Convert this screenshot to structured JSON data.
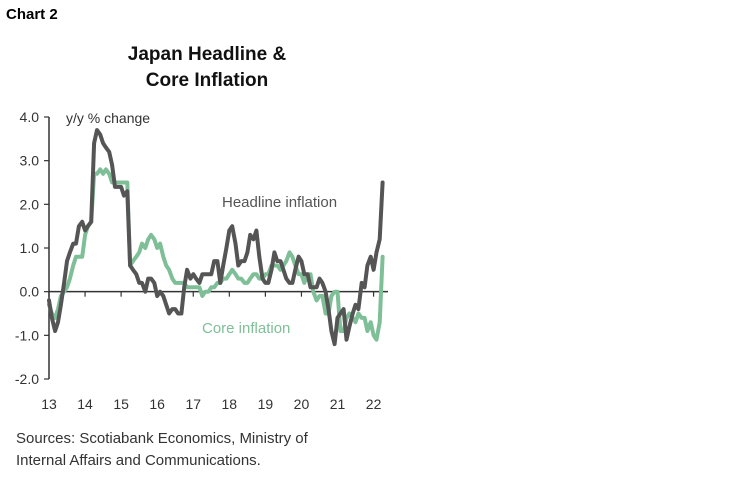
{
  "chart_label": "Chart 2",
  "title_line1": "Japan Headline &",
  "title_line2": "Core Inflation",
  "source_line1": "Sources: Scotiabank Economics, Ministry of",
  "source_line2": "Internal Affairs and Communications.",
  "colors": {
    "headline": "#555555",
    "core": "#7fbf97",
    "axis": "#333333"
  },
  "chart_data": {
    "type": "line",
    "ylabel": "y/y % change",
    "ylim": [
      -2.0,
      4.0
    ],
    "yticks": [
      "4.0",
      "3.0",
      "2.0",
      "1.0",
      "0.0",
      "-1.0",
      "-2.0"
    ],
    "xlim": [
      2013.0,
      2022.4
    ],
    "xticks": [
      "13",
      "14",
      "15",
      "16",
      "17",
      "18",
      "19",
      "20",
      "21",
      "22"
    ],
    "annotations": {
      "headline": "Headline inflation",
      "core": "Core inflation"
    },
    "series": [
      {
        "name": "Headline inflation",
        "x": [
          2013.0,
          2013.08,
          2013.17,
          2013.25,
          2013.33,
          2013.42,
          2013.5,
          2013.58,
          2013.67,
          2013.75,
          2013.83,
          2013.92,
          2014.0,
          2014.08,
          2014.17,
          2014.25,
          2014.33,
          2014.42,
          2014.5,
          2014.58,
          2014.67,
          2014.75,
          2014.83,
          2014.92,
          2015.0,
          2015.08,
          2015.17,
          2015.25,
          2015.33,
          2015.42,
          2015.5,
          2015.58,
          2015.67,
          2015.75,
          2015.83,
          2015.92,
          2016.0,
          2016.08,
          2016.17,
          2016.25,
          2016.33,
          2016.42,
          2016.5,
          2016.58,
          2016.67,
          2016.75,
          2016.83,
          2016.92,
          2017.0,
          2017.08,
          2017.17,
          2017.25,
          2017.33,
          2017.42,
          2017.5,
          2017.58,
          2017.67,
          2017.75,
          2017.83,
          2017.92,
          2018.0,
          2018.08,
          2018.17,
          2018.25,
          2018.33,
          2018.42,
          2018.5,
          2018.58,
          2018.67,
          2018.75,
          2018.83,
          2018.92,
          2019.0,
          2019.08,
          2019.17,
          2019.25,
          2019.33,
          2019.42,
          2019.5,
          2019.58,
          2019.67,
          2019.75,
          2019.83,
          2019.92,
          2020.0,
          2020.08,
          2020.17,
          2020.25,
          2020.33,
          2020.42,
          2020.5,
          2020.58,
          2020.67,
          2020.75,
          2020.83,
          2020.92,
          2021.0,
          2021.08,
          2021.17,
          2021.25,
          2021.33,
          2021.42,
          2021.5,
          2021.58,
          2021.67,
          2021.75,
          2021.83,
          2021.92,
          2022.0,
          2022.08,
          2022.17,
          2022.25
        ],
        "y": [
          -0.2,
          -0.6,
          -0.9,
          -0.7,
          -0.3,
          0.2,
          0.7,
          0.9,
          1.1,
          1.1,
          1.5,
          1.6,
          1.4,
          1.5,
          1.6,
          3.4,
          3.7,
          3.6,
          3.4,
          3.3,
          3.2,
          2.9,
          2.4,
          2.4,
          2.4,
          2.2,
          2.3,
          0.6,
          0.5,
          0.4,
          0.2,
          0.2,
          0.0,
          0.3,
          0.3,
          0.2,
          -0.1,
          0.0,
          -0.1,
          -0.3,
          -0.5,
          -0.4,
          -0.4,
          -0.5,
          -0.5,
          0.1,
          0.5,
          0.3,
          0.4,
          0.3,
          0.2,
          0.4,
          0.4,
          0.4,
          0.4,
          0.7,
          0.7,
          0.2,
          0.6,
          1.0,
          1.4,
          1.5,
          1.1,
          0.6,
          0.7,
          0.7,
          0.9,
          1.3,
          1.2,
          1.4,
          0.8,
          0.3,
          0.2,
          0.2,
          0.5,
          0.9,
          0.7,
          0.7,
          0.5,
          0.3,
          0.2,
          0.2,
          0.5,
          0.8,
          0.7,
          0.4,
          0.4,
          0.1,
          0.1,
          0.1,
          0.3,
          0.2,
          0.0,
          -0.4,
          -0.9,
          -1.2,
          -0.6,
          -0.5,
          -0.4,
          -1.1,
          -0.8,
          -0.5,
          -0.3,
          -0.4,
          0.2,
          0.1,
          0.6,
          0.8,
          0.5,
          0.9,
          1.2,
          2.5
        ]
      },
      {
        "name": "Core inflation",
        "x": [
          2013.0,
          2013.08,
          2013.17,
          2013.25,
          2013.33,
          2013.42,
          2013.5,
          2013.58,
          2013.67,
          2013.75,
          2013.83,
          2013.92,
          2014.0,
          2014.08,
          2014.17,
          2014.25,
          2014.33,
          2014.42,
          2014.5,
          2014.58,
          2014.67,
          2014.75,
          2014.83,
          2014.92,
          2015.0,
          2015.08,
          2015.17,
          2015.25,
          2015.33,
          2015.42,
          2015.5,
          2015.58,
          2015.67,
          2015.75,
          2015.83,
          2015.92,
          2016.0,
          2016.08,
          2016.17,
          2016.25,
          2016.33,
          2016.42,
          2016.5,
          2016.58,
          2016.67,
          2016.75,
          2016.83,
          2016.92,
          2017.0,
          2017.08,
          2017.17,
          2017.25,
          2017.33,
          2017.42,
          2017.5,
          2017.58,
          2017.67,
          2017.75,
          2017.83,
          2017.92,
          2018.0,
          2018.08,
          2018.17,
          2018.25,
          2018.33,
          2018.42,
          2018.5,
          2018.58,
          2018.67,
          2018.75,
          2018.83,
          2018.92,
          2019.0,
          2019.08,
          2019.17,
          2019.25,
          2019.33,
          2019.42,
          2019.5,
          2019.58,
          2019.67,
          2019.75,
          2019.83,
          2019.92,
          2020.0,
          2020.08,
          2020.17,
          2020.25,
          2020.33,
          2020.42,
          2020.5,
          2020.58,
          2020.67,
          2020.75,
          2020.83,
          2020.92,
          2021.0,
          2021.08,
          2021.17,
          2021.25,
          2021.33,
          2021.42,
          2021.5,
          2021.58,
          2021.67,
          2021.75,
          2021.83,
          2021.92,
          2022.0,
          2022.08,
          2022.17,
          2022.25
        ],
        "y": [
          -0.3,
          -0.5,
          -0.6,
          -0.4,
          -0.1,
          0.0,
          0.1,
          0.3,
          0.6,
          0.8,
          0.8,
          0.8,
          1.3,
          1.5,
          1.6,
          2.7,
          2.7,
          2.8,
          2.7,
          2.8,
          2.7,
          2.5,
          2.5,
          2.5,
          2.5,
          2.5,
          2.5,
          0.6,
          0.7,
          0.8,
          0.9,
          1.1,
          1.0,
          1.2,
          1.3,
          1.2,
          1.0,
          1.1,
          0.8,
          0.6,
          0.5,
          0.3,
          0.2,
          0.2,
          0.2,
          0.2,
          0.1,
          0.1,
          0.1,
          0.1,
          0.1,
          -0.1,
          0.0,
          0.0,
          0.1,
          0.1,
          0.2,
          0.2,
          0.3,
          0.3,
          0.4,
          0.5,
          0.4,
          0.3,
          0.3,
          0.2,
          0.2,
          0.3,
          0.4,
          0.4,
          0.3,
          0.3,
          0.4,
          0.4,
          0.6,
          0.6,
          0.6,
          0.5,
          0.6,
          0.7,
          0.9,
          0.8,
          0.6,
          0.4,
          0.4,
          0.2,
          0.4,
          0.4,
          0.0,
          -0.2,
          -0.1,
          -0.1,
          -0.5,
          -0.5,
          -0.1,
          0.0,
          0.0,
          -0.9,
          -0.9,
          -0.6,
          -0.5,
          -0.6,
          -0.7,
          -0.5,
          -0.6,
          -0.6,
          -0.9,
          -0.7,
          -1.0,
          -1.1,
          -0.7,
          0.8
        ]
      }
    ]
  }
}
